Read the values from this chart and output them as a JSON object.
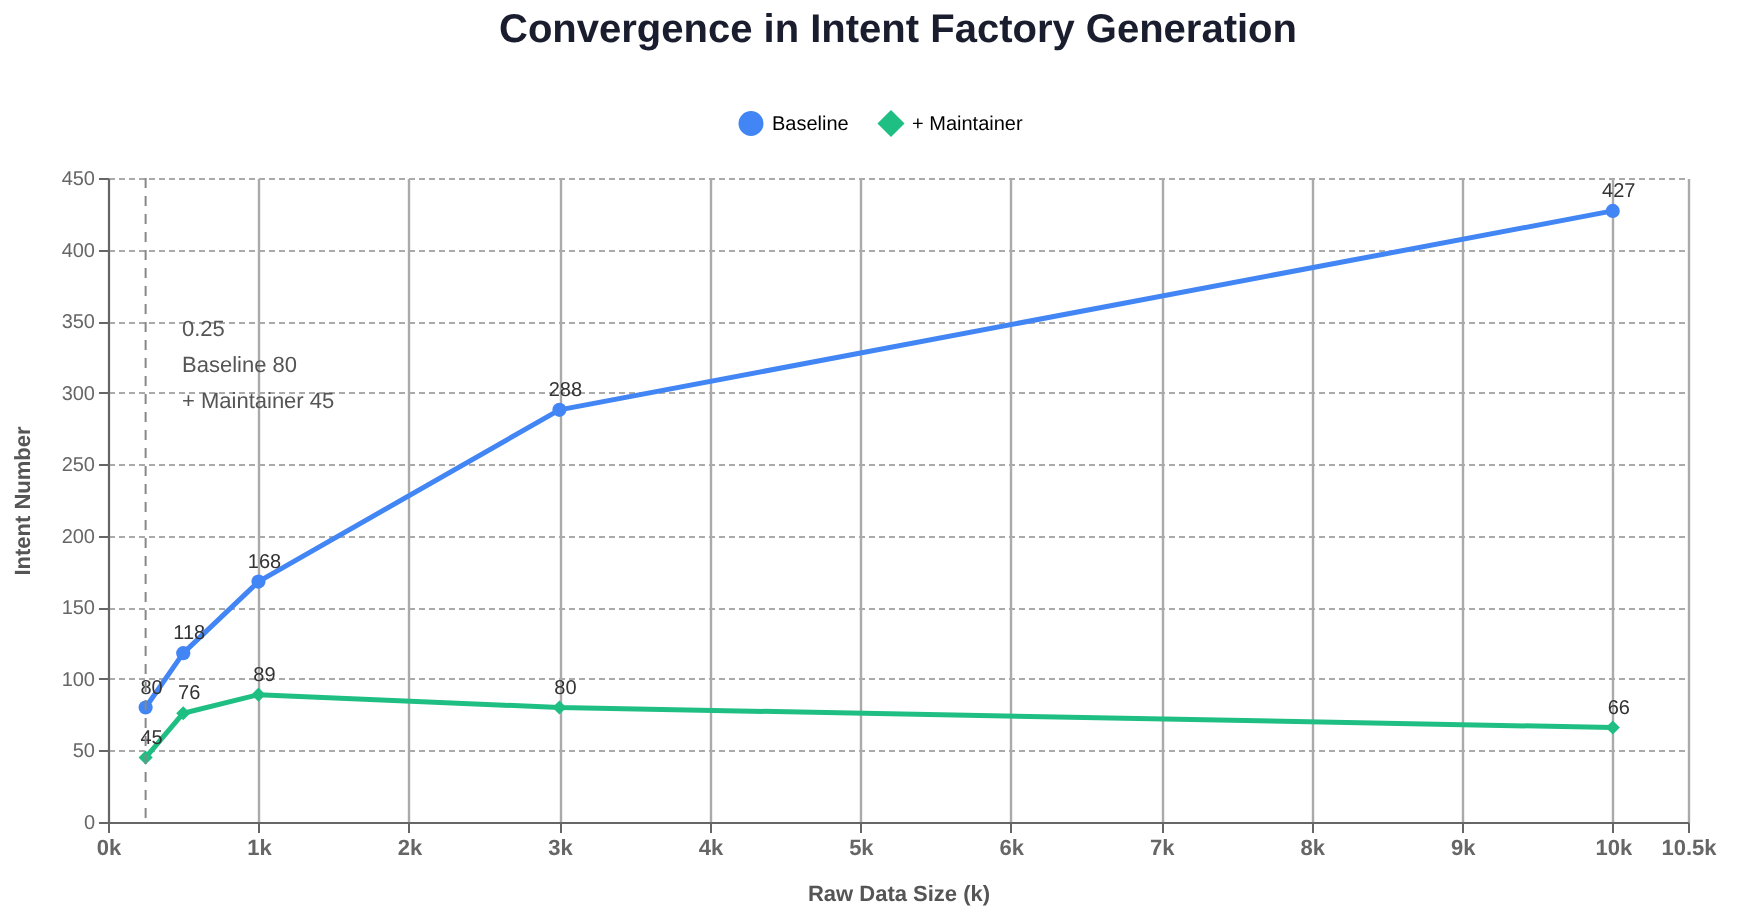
{
  "chart_data": {
    "type": "line",
    "title": "Convergence in Intent Factory Generation",
    "xlabel": "Raw Data Size (k)",
    "ylabel": "Intent Number",
    "x": [
      0.25,
      0.5,
      1,
      3,
      10
    ],
    "series": [
      {
        "name": "Baseline",
        "color": "#4285f4",
        "marker": "circle",
        "values": [
          80,
          118,
          168,
          288,
          427
        ]
      },
      {
        "name": "+ Maintainer",
        "color": "#1fbf84",
        "marker": "diamond",
        "values": [
          45,
          76,
          89,
          80,
          66
        ]
      }
    ],
    "xlim": [
      0,
      10.5
    ],
    "xticks": [
      {
        "value": 0,
        "label": "0k"
      },
      {
        "value": 1,
        "label": "1k"
      },
      {
        "value": 2,
        "label": "2k"
      },
      {
        "value": 3,
        "label": "3k"
      },
      {
        "value": 4,
        "label": "4k"
      },
      {
        "value": 5,
        "label": "5k"
      },
      {
        "value": 6,
        "label": "6k"
      },
      {
        "value": 7,
        "label": "7k"
      },
      {
        "value": 8,
        "label": "8k"
      },
      {
        "value": 9,
        "label": "9k"
      },
      {
        "value": 10,
        "label": "10k"
      },
      {
        "value": 10.5,
        "label": "10.5k"
      }
    ],
    "ylim": [
      0,
      450
    ],
    "yticks": [
      0,
      50,
      100,
      150,
      200,
      250,
      300,
      350,
      400,
      450
    ],
    "ref_lines": [
      {
        "axis": "x",
        "value": 0.25,
        "label": null,
        "line_style": "dashed",
        "color": "#888888"
      }
    ],
    "annotations": [
      "0.25",
      "Baseline  80",
      "+ Maintainer  45"
    ],
    "data_labels": true,
    "grid": true,
    "legend": "top",
    "line_style": "solid"
  }
}
